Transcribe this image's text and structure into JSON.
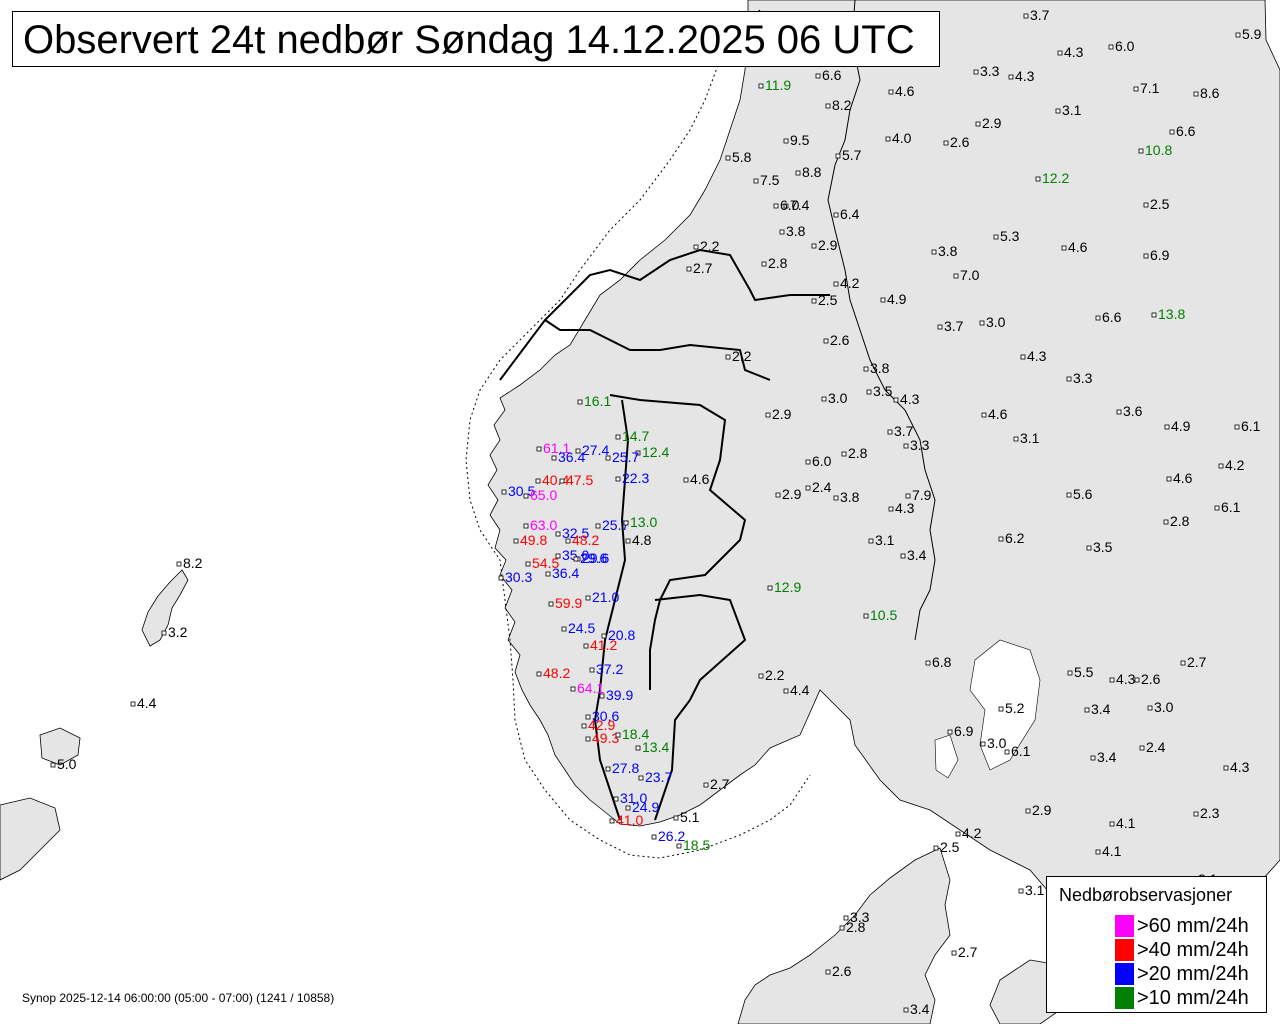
{
  "title": "Observert 24t nedbør Søndag 14.12.2025 06 UTC",
  "footer": "Synop 2025-12-14 06:00:00 (05:00 - 07:00) (1241 / 10858)",
  "colors": {
    "land": "#e5e5e5",
    "sea": "#ffffff",
    "coast": "#000000",
    "gt60": "#ff00ff",
    "gt40": "#ff0000",
    "gt20": "#0000ff",
    "gt10": "#008000",
    "normal": "#000000"
  },
  "legend": {
    "title": "Nedbørobservasjoner",
    "items": [
      {
        "label": ">60 mm/24h",
        "color": "#ff00ff"
      },
      {
        "label": ">40 mm/24h",
        "color": "#ff0000"
      },
      {
        "label": ">20 mm/24h",
        "color": "#0000ff"
      },
      {
        "label": ">10 mm/24h",
        "color": "#008000"
      }
    ]
  },
  "observations": [
    "3.7",
    "5.9",
    "4.3",
    "6.0",
    "3.3",
    "4.3",
    "7.1",
    "8.6",
    "11.9",
    "6.6",
    "4.6",
    "8.2",
    "3.1",
    "6.6",
    "4.0",
    "2.6",
    "2.9",
    "10.8",
    "5.7",
    "12.2",
    "9.5",
    "8.8",
    "5.8",
    "7.5",
    "2.5",
    "7.4",
    "6.0",
    "6.4",
    "3.8",
    "5.3",
    "4.6",
    "6.9",
    "2.9",
    "3.8",
    "7.0",
    "2.2",
    "2.7",
    "2.8",
    "4.2",
    "2.5",
    "4.9",
    "3.7",
    "3.0",
    "6.6",
    "13.8",
    "2.6",
    "4.3",
    "3.8",
    "3.3",
    "2.2",
    "3.0",
    "3.5",
    "4.3",
    "2.9",
    "4.6",
    "3.6",
    "16.1",
    "3.7",
    "3.3",
    "3.1",
    "4.9",
    "6.1",
    "14.7",
    "12.4",
    "4.6",
    "2.8",
    "25.7",
    "6.0",
    "4.2",
    "2.9",
    "2.4",
    "3.8",
    "7.9",
    "5.6",
    "6.2",
    "2.8",
    "6.1",
    "22.3",
    "4.6",
    "4.3",
    "3.1",
    "3.5",
    "3.4",
    "4.8",
    "61.1",
    "36.4",
    "27.4",
    "40.4",
    "47.5",
    "30.5",
    "65.0",
    "32.5",
    "25.7",
    "13.0",
    "63.0",
    "48.2",
    "49.8",
    "35.0",
    "29.6",
    "29.6",
    "36.4",
    "54.5",
    "30.3",
    "21.0",
    "59.9",
    "24.5",
    "20.8",
    "41.2",
    "37.2",
    "48.2",
    "64.1",
    "39.9",
    "30.6",
    "42.9",
    "49.3",
    "18.4",
    "13.4",
    "23.7",
    "27.8",
    "31.0",
    "24.9",
    "41.0",
    "26.2",
    "18.5",
    "5.1",
    "2.7",
    "12.9",
    "10.5",
    "2.2",
    "4.4",
    "6.9",
    "6.8",
    "5.2",
    "3.0",
    "6.1",
    "5.5",
    "4.3",
    "2.6",
    "2.7",
    "3.4",
    "3.0",
    "2.4",
    "3.4",
    "4.3",
    "2.9",
    "2.5",
    "4.1",
    "2.3",
    "4.2",
    "4.1",
    "3.1",
    "3.1",
    "3.3",
    "2.8",
    "2.7",
    "2.6",
    "3.4",
    "8.2",
    "3.2",
    "4.4",
    "5.0"
  ]
}
